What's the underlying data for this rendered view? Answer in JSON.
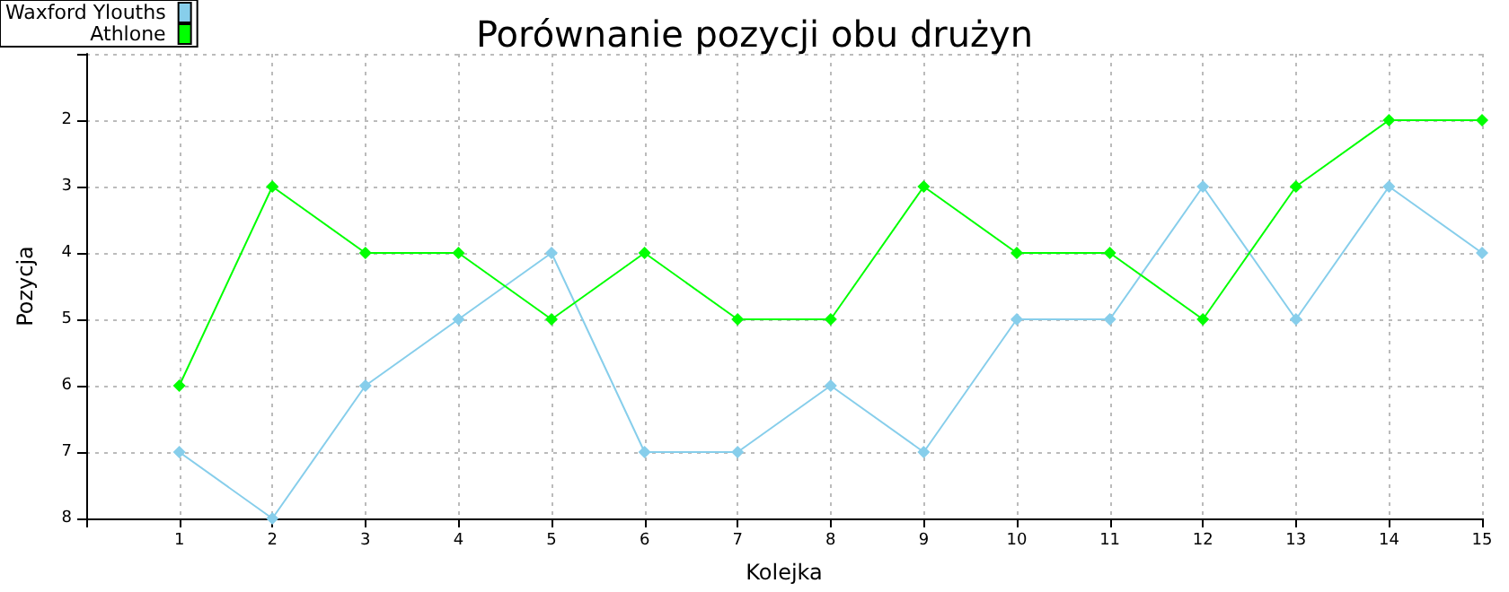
{
  "chart_data": {
    "type": "line",
    "title": "Porównanie pozycji obu drużyn",
    "xlabel": "Kolejka",
    "ylabel": "Pozycja",
    "x": [
      1,
      2,
      3,
      4,
      5,
      6,
      7,
      8,
      9,
      10,
      11,
      12,
      13,
      14,
      15
    ],
    "series": [
      {
        "name": "Waxford Ylouths",
        "color": "#87ceeb",
        "values": [
          7,
          8,
          6,
          5,
          4,
          7,
          7,
          6,
          7,
          5,
          5,
          3,
          5,
          3,
          4
        ]
      },
      {
        "name": "Athlone",
        "color": "#00ff00",
        "values": [
          6,
          3,
          4,
          4,
          5,
          4,
          5,
          5,
          3,
          4,
          4,
          5,
          3,
          2,
          2
        ]
      }
    ],
    "xlim": [
      0,
      15
    ],
    "xticks": [
      1,
      2,
      3,
      4,
      5,
      6,
      7,
      8,
      9,
      10,
      11,
      12,
      13,
      14,
      15
    ],
    "ylim": [
      8,
      1
    ],
    "yticks": [
      {
        "value": 1,
        "label": null
      },
      2,
      3,
      4,
      5,
      6,
      7,
      8
    ],
    "grid": true,
    "legend": "top left",
    "marker": "diamond",
    "line_style": "solid"
  }
}
